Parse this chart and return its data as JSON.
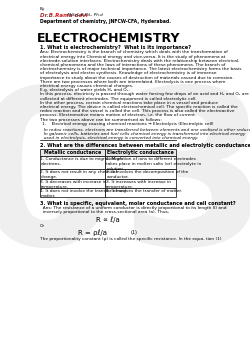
{
  "background_color": "#ffffff",
  "watermark_text": "03",
  "watermark_color": "#cccccc",
  "watermark_alpha": 0.3,
  "header_by": "By",
  "header_name": "Dr.B.Rama devi",
  "header_name_color": "#cc2222",
  "header_quals": " M.Sc., B.Ed., Ph.d",
  "header_dept": "Department of chemistry, JNFCW-CFA, Hyderabad.",
  "title": "ELECTROCHEMISTRY",
  "q1_head": "1. What is electrochemistry?  What is its importance?",
  "q1_lines": [
    "Ans: Electrochemistry is the branch of chemistry which deals with the transformation of",
    "electrical energy into Chemical energy and vice-versa. It is the study of phenomena at",
    "electrode-solution interfaces. Electrochemistry deals with the relationship between electrical,",
    "chemical phenomena and the laws of interactions of these phenomena. The branch of",
    "electrochemistry is of major technical importance. The latest electrochemistry forms the basis",
    "of electrolysis and electro synthesis. Knowledge of electrochemistry is of immense",
    "importance to study about the causes of destruction of materials caused due to corrosion.",
    "There are two processes where both are interrelated. Electrolysis is one process where",
    "electrical energy causes chemical changes.",
    "E.g. electrolysis of water yields H₂ and O₂.",
    "In this process, electricity is passed through water forcing few drops of an acid and H₂ and O₂ are",
    "collected at different electrodes. The equipment is called electrolytic cell.",
    "In the other process, certain chemical reactions take place in a vessel and produce",
    "electrical energy. The device is called electrochemical cell. The specific reaction is called the",
    "redox reaction and the vessel is called the cell. This process is also called the electroactive",
    "process. Electromotive means motion of electron, i.e. the flow of current.",
    "The two processes above can be summarised as follows:"
  ],
  "q1_point1": "1.    Electrical energy causing chemical reactions → Electrolysis (Electrolytic cell)",
  "q1_point2_lines": [
    "  In redox reactions, electrons are transferred between elements and one oxidised is other reduced.",
    "  In galvanic cells, batteries and fuel cells chemical energy is transformed into electrical energy",
    "  used in electrolysis, electrical energy is converted into chemical energy."
  ],
  "q2_head": "2. What are the differences between metallic and electrolytic conductance?",
  "table_col1_header": "Metallic conductance",
  "table_col2_header": "Electrolytic conductance",
  "table_rows_col1": [
    "1. Conductance is due to migration of\nelectrons.",
    "2. It does not result in any chemical\nchange.",
    "3. It decreases with increase in\ntemperature.",
    "4. It does not involve the transfer of any\nmatter."
  ],
  "table_rows_col2": [
    "1. Migration of ions to different electrodes\ntakes place in molten salts (or) electrolyte in\nsolution.",
    "2. It involves the decomposition of the\nconductor.",
    "3. It increases with increase in\ntemperature.",
    "4. It involves the transfer of matter."
  ],
  "q3_head": "3. What is specific, equivalent, molar conductance and cell constant?",
  "q3_lines": [
    "  Ans: The resistance of a uniform conductor is directly proportional to its length (l) and",
    "  inversely proportional to the cross-sectional area (a). Thus,"
  ],
  "q3_formula1": "R ∝ ℓ/a",
  "q3_or": "Or",
  "q3_formula2": "R = ρℓ/a",
  "q3_eq_num": "(1)",
  "q3_footnote": "The proportionality constant (ρ) is called the specific resistance. In the equa- tion (1)"
}
